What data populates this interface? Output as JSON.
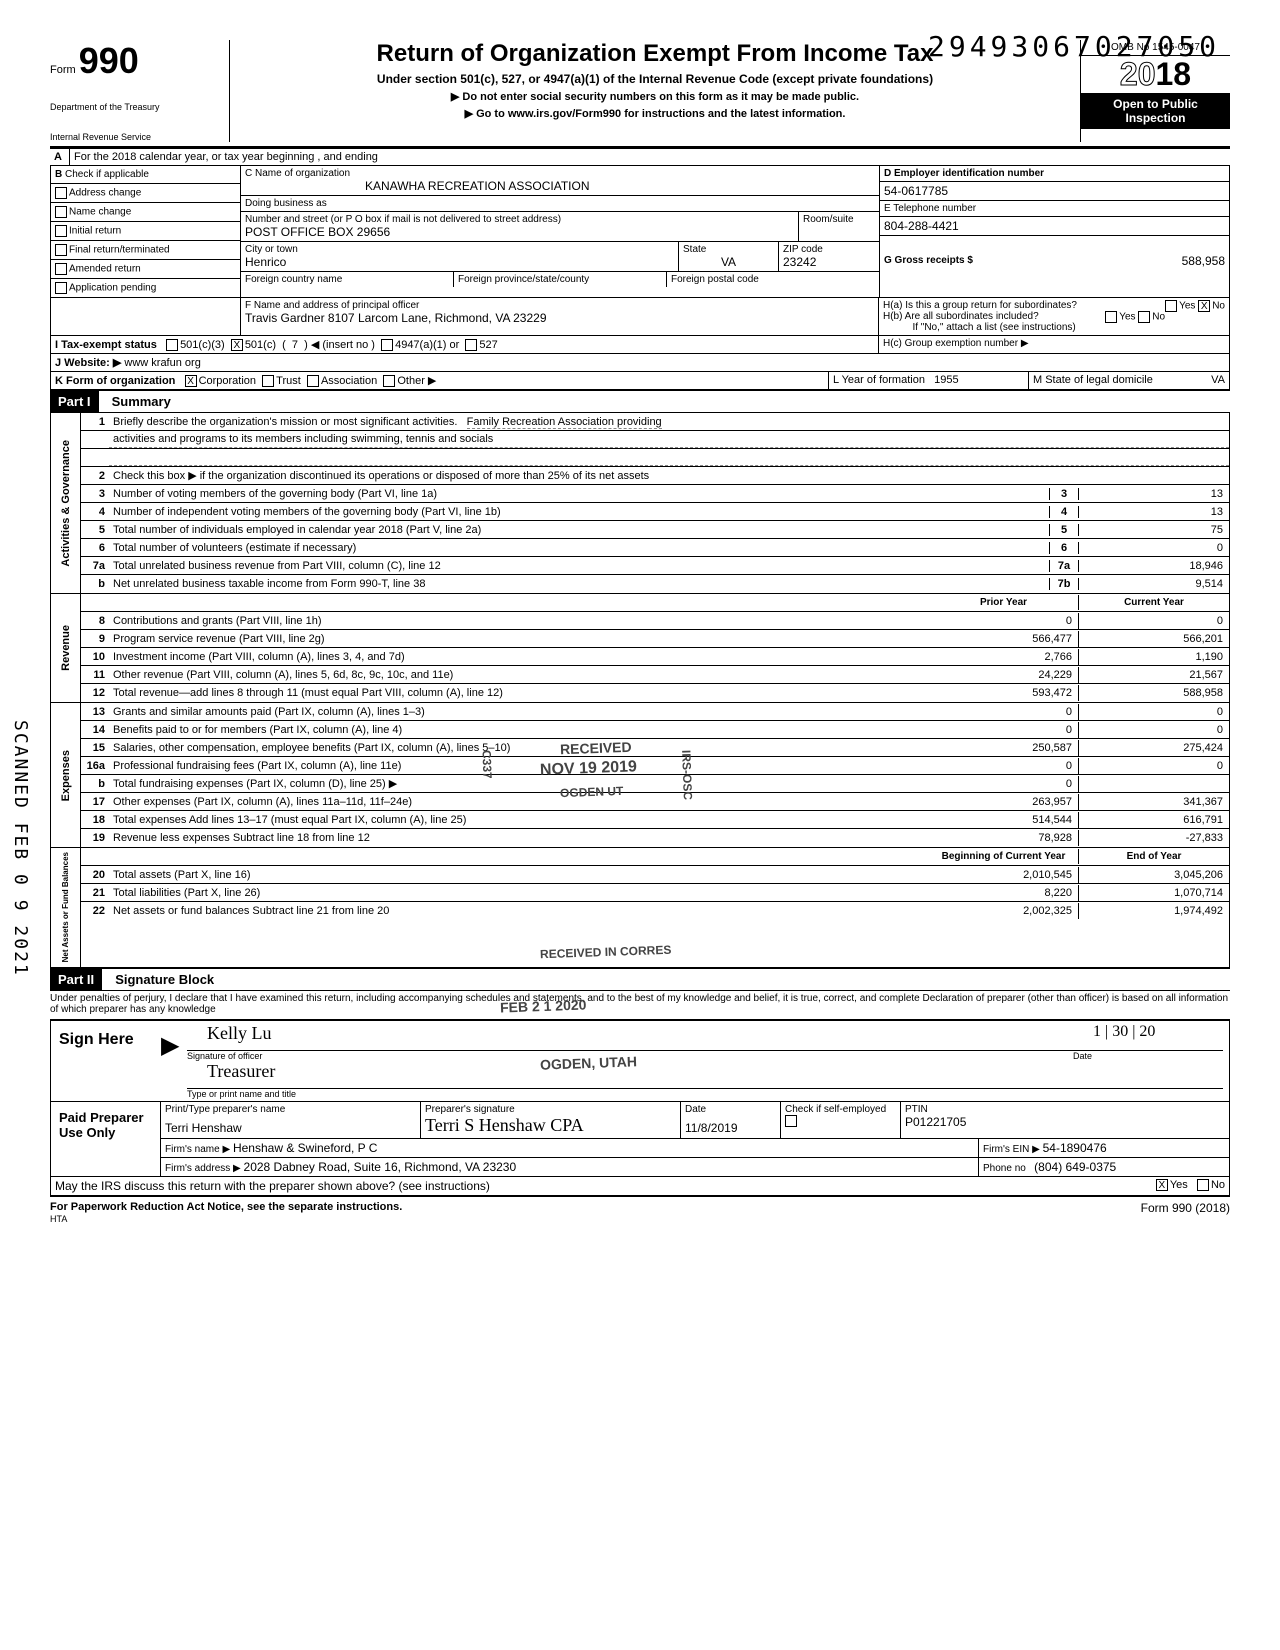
{
  "dln": "29493067027050",
  "header": {
    "form_label": "Form",
    "form_number": "990",
    "dept1": "Department of the Treasury",
    "dept2": "Internal Revenue Service",
    "title": "Return of Organization Exempt From Income Tax",
    "subtitle": "Under section 501(c), 527, or 4947(a)(1) of the Internal Revenue Code (except private foundations)",
    "warn": "▶ Do not enter social security numbers on this form as it may be made public.",
    "goto": "▶ Go to www.irs.gov/Form990 for instructions and the latest information.",
    "omb": "OMB No 1545-0047",
    "year_prefix": "20",
    "year_suffix": "18",
    "public1": "Open to Public",
    "public2": "Inspection"
  },
  "line_a": "For the 2018 calendar year, or tax year beginning                                               , and ending",
  "checks": {
    "b_label": "Check if applicable",
    "address": "Address change",
    "name": "Name change",
    "initial": "Initial return",
    "final": "Final return/terminated",
    "amended": "Amended return",
    "pending": "Application pending"
  },
  "org": {
    "c_label": "C  Name of organization",
    "name": "KANAWHA RECREATION ASSOCIATION",
    "dba_label": "Doing business as",
    "addr_label": "Number and street (or P O  box if mail is not delivered to street address)",
    "room_label": "Room/suite",
    "addr": "POST OFFICE BOX 29656",
    "city_label": "City or town",
    "city": "Henrico",
    "state_label": "State",
    "state": "VA",
    "zip_label": "ZIP code",
    "zip": "23242",
    "foreign_country_label": "Foreign country name",
    "foreign_prov_label": "Foreign province/state/county",
    "foreign_postal_label": "Foreign postal code"
  },
  "right_d": {
    "d_label": "D   Employer identification number",
    "ein": "54-0617785",
    "e_label": "E   Telephone number",
    "phone": "804-288-4421",
    "g_label": "G   Gross receipts $",
    "gross": "588,958"
  },
  "f": {
    "label": "F  Name and address of principal officer",
    "value": "Travis Gardner 8107 Larcom Lane, Richmond, VA  23229"
  },
  "h": {
    "ha": "H(a) Is this a group return for subordinates?",
    "hb": "H(b) Are all subordinates included?",
    "hb_note": "If \"No,\" attach a list (see instructions)",
    "hc": "H(c) Group exemption number ▶",
    "yes": "Yes",
    "no": "No"
  },
  "i": {
    "label": "I    Tax-exempt status",
    "c3": "501(c)(3)",
    "c": "501(c)",
    "insert": "◀ (insert no )",
    "num": "7",
    "a1": "4947(a)(1) or",
    "527": "527"
  },
  "j": {
    "label": "J   Website: ▶",
    "value": "www krafun org"
  },
  "k": {
    "label": "K  Form of organization",
    "corp": "Corporation",
    "trust": "Trust",
    "assoc": "Association",
    "other": "Other ▶"
  },
  "l": {
    "label": "L Year of formation",
    "value": "1955"
  },
  "m": {
    "label": "M State of legal domicile",
    "value": "VA"
  },
  "part1": {
    "hdr": "Part I",
    "title": "Summary",
    "line1_label": "Briefly describe the organization's mission or most significant activities.",
    "line1_val": "Family Recreation Association providing",
    "line1_val2": "activities and programs to its members including swimming, tennis and socials",
    "line2": "Check this box  ▶        if the organization discontinued its operations or disposed of more than 25% of its net assets",
    "rows_gov": [
      {
        "n": "3",
        "d": "Number of voting members of the governing body (Part VI, line 1a)",
        "ln": "3",
        "v": "13"
      },
      {
        "n": "4",
        "d": "Number of independent voting members of the governing body (Part VI, line 1b)",
        "ln": "4",
        "v": "13"
      },
      {
        "n": "5",
        "d": "Total number of individuals employed in calendar year 2018 (Part V, line 2a)",
        "ln": "5",
        "v": "75"
      },
      {
        "n": "6",
        "d": "Total number of volunteers (estimate if necessary)",
        "ln": "6",
        "v": "0"
      },
      {
        "n": "7a",
        "d": "Total unrelated business revenue from Part VIII, column (C), line 12",
        "ln": "7a",
        "v": "18,946"
      },
      {
        "n": "b",
        "d": "Net unrelated business taxable income from Form 990-T, line 38",
        "ln": "7b",
        "v": "9,514"
      }
    ],
    "py_hdr": "Prior Year",
    "cy_hdr": "Current Year",
    "rows_rev": [
      {
        "n": "8",
        "d": "Contributions and grants (Part VIII, line 1h)",
        "py": "0",
        "cy": "0"
      },
      {
        "n": "9",
        "d": "Program service revenue (Part VIII, line 2g)",
        "py": "566,477",
        "cy": "566,201"
      },
      {
        "n": "10",
        "d": "Investment income (Part VIII, column (A), lines 3, 4, and 7d)",
        "py": "2,766",
        "cy": "1,190"
      },
      {
        "n": "11",
        "d": "Other revenue (Part VIII, column (A), lines 5, 6d, 8c, 9c, 10c, and 11e)",
        "py": "24,229",
        "cy": "21,567"
      },
      {
        "n": "12",
        "d": "Total revenue—add lines 8 through 11 (must equal Part VIII, column (A), line 12)",
        "py": "593,472",
        "cy": "588,958"
      }
    ],
    "rows_exp": [
      {
        "n": "13",
        "d": "Grants and similar amounts paid (Part IX, column (A), lines 1–3)",
        "py": "0",
        "cy": "0"
      },
      {
        "n": "14",
        "d": "Benefits paid to or for members (Part IX, column (A), line 4)",
        "py": "0",
        "cy": "0"
      },
      {
        "n": "15",
        "d": "Salaries, other compensation, employee benefits (Part IX, column (A), lines 5–10)",
        "py": "250,587",
        "cy": "275,424"
      },
      {
        "n": "16a",
        "d": "Professional fundraising fees (Part IX, column (A), line 11e)",
        "py": "0",
        "cy": "0"
      },
      {
        "n": "b",
        "d": "Total fundraising expenses (Part IX, column (D), line 25) ▶",
        "py": "0",
        "cy": ""
      },
      {
        "n": "17",
        "d": "Other expenses (Part IX, column (A), lines 11a–11d, 11f–24e)",
        "py": "263,957",
        "cy": "341,367"
      },
      {
        "n": "18",
        "d": "Total expenses Add lines 13–17 (must equal Part IX, column (A), line 25)",
        "py": "514,544",
        "cy": "616,791"
      },
      {
        "n": "19",
        "d": "Revenue less expenses Subtract line 18 from line 12",
        "py": "78,928",
        "cy": "-27,833"
      }
    ],
    "boy_hdr": "Beginning of Current Year",
    "eoy_hdr": "End of Year",
    "rows_na": [
      {
        "n": "20",
        "d": "Total assets (Part X, line 16)",
        "py": "2,010,545",
        "cy": "3,045,206"
      },
      {
        "n": "21",
        "d": "Total liabilities (Part X, line 26)",
        "py": "8,220",
        "cy": "1,070,714"
      },
      {
        "n": "22",
        "d": "Net assets or fund balances Subtract line 21 from line 20",
        "py": "2,002,325",
        "cy": "1,974,492"
      }
    ],
    "vlabels": {
      "gov": "Activities & Governance",
      "rev": "Revenue",
      "exp": "Expenses",
      "na": "Net Assets or\nFund Balances"
    }
  },
  "part2": {
    "hdr": "Part II",
    "title": "Signature Block",
    "perjury": "Under penalties of perjury, I declare that I have examined this return, including accompanying schedules and statements, and to the best of my knowledge and belief, it is true, correct, and complete  Declaration of preparer (other than officer) is based on all information of which preparer has any knowledge",
    "sign_here": "Sign Here",
    "sig_officer_cap": "Signature of officer",
    "date_cap": "Date",
    "date_val": "1 | 30 | 20",
    "title_cap": "Type or print name and title",
    "title_val": "Treasurer",
    "paid": "Paid Preparer Use Only",
    "prep_name_lbl": "Print/Type preparer's name",
    "prep_name": "Terri Henshaw",
    "prep_sig_lbl": "Preparer's signature",
    "prep_sig": "Terri S Henshaw CPA",
    "prep_date_lbl": "Date",
    "prep_date": "11/8/2019",
    "check_lbl": "Check        if self-employed",
    "ptin_lbl": "PTIN",
    "ptin": "P01221705",
    "firm_name_lbl": "Firm's name    ▶",
    "firm_name": "Henshaw & Swineford, P C",
    "firm_ein_lbl": "Firm's EIN  ▶",
    "firm_ein": "54-1890476",
    "firm_addr_lbl": "Firm's address ▶",
    "firm_addr": "2028 Dabney Road, Suite 16, Richmond, VA 23230",
    "phone_lbl": "Phone no",
    "phone": "(804) 649-0375",
    "discuss": "May the IRS discuss this return with the preparer shown above? (see instructions)",
    "yes": "Yes",
    "no": "No"
  },
  "footer": {
    "pra": "For Paperwork Reduction Act Notice, see the separate instructions.",
    "hta": "HTA",
    "form": "Form 990 (2018)"
  },
  "stamps": {
    "received": "RECEIVED",
    "date1": "NOV 19 2019",
    "ogden": "OGDEN UT",
    "corres": "RECEIVED IN CORRES",
    "date2": "FEB 2 1 2020",
    "ogden2": "OGDEN, UTAH",
    "irs_osc": "IRS-OSC",
    "c337": "C337"
  },
  "scanned": "SCANNED FEB 0 9 2021"
}
